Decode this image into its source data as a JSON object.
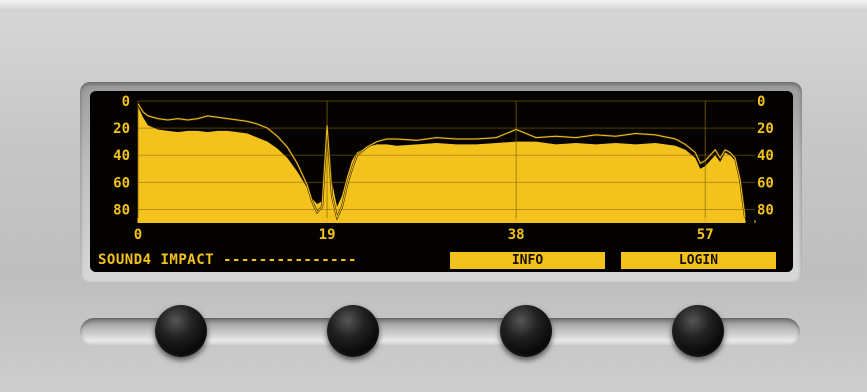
{
  "device": {
    "name": "SOUND4 IMPACT",
    "separator": "---------------"
  },
  "softkeys": {
    "info": "INFO",
    "login": "LOGIN"
  },
  "colors": {
    "lcd_amber": "#f4c21c",
    "lcd_background": "#050300",
    "panel_metal": "#c8c8c8"
  },
  "chart_data": {
    "type": "area",
    "x_ticks": [
      "0",
      "19",
      "38",
      "57"
    ],
    "y_ticks_left": [
      "0",
      "20",
      "40",
      "60",
      "80"
    ],
    "y_ticks_right": [
      "0",
      "20",
      "40",
      "60",
      "80"
    ],
    "xlim": [
      0,
      62
    ],
    "ylim": [
      0,
      90
    ],
    "y_inverted": true,
    "grid": true,
    "series": [
      {
        "kind": "fill",
        "x": [
          0,
          0.5,
          1,
          2,
          3,
          4,
          5,
          6,
          7,
          8,
          9,
          10,
          11,
          12,
          13,
          14,
          15,
          16,
          17,
          17.5,
          18,
          18.5,
          19,
          19.5,
          20,
          20.5,
          21,
          21.5,
          22,
          23,
          24,
          25,
          26,
          28,
          30,
          32,
          34,
          36,
          38,
          40,
          42,
          44,
          46,
          48,
          50,
          52,
          54,
          55,
          56,
          56.5,
          57,
          57.5,
          58,
          58.5,
          59,
          59.5,
          60,
          60.5,
          61
        ],
        "y": [
          4,
          12,
          18,
          21,
          22,
          23,
          22,
          22,
          23,
          22,
          22,
          23,
          24,
          27,
          30,
          35,
          42,
          52,
          64,
          72,
          76,
          74,
          24,
          60,
          78,
          70,
          56,
          44,
          38,
          34,
          32,
          32,
          33,
          32,
          31,
          32,
          32,
          31,
          30,
          30,
          32,
          31,
          32,
          31,
          32,
          31,
          33,
          36,
          42,
          50,
          48,
          44,
          40,
          45,
          38,
          40,
          44,
          60,
          82
        ]
      },
      {
        "kind": "line",
        "x": [
          0,
          0.5,
          1,
          2,
          3,
          4,
          5,
          6,
          7,
          8,
          9,
          10,
          11,
          12,
          13,
          14,
          15,
          16,
          17,
          17.5,
          18,
          18.5,
          19,
          19.5,
          20,
          20.5,
          21,
          21.5,
          22,
          23,
          24,
          25,
          26,
          28,
          30,
          32,
          34,
          36,
          38,
          40,
          42,
          44,
          46,
          48,
          50,
          52,
          54,
          55,
          56,
          56.5,
          57,
          57.5,
          58,
          58.5,
          59,
          59.5,
          60,
          60.5,
          61
        ],
        "y": [
          2,
          8,
          11,
          13,
          14,
          13,
          14,
          13,
          11,
          12,
          13,
          14,
          15,
          17,
          20,
          26,
          34,
          46,
          62,
          74,
          82,
          78,
          18,
          70,
          86,
          78,
          62,
          50,
          40,
          34,
          30,
          28,
          28,
          29,
          27,
          28,
          28,
          27,
          21,
          27,
          26,
          27,
          25,
          26,
          24,
          25,
          28,
          32,
          38,
          46,
          44,
          40,
          36,
          42,
          36,
          38,
          42,
          58,
          86
        ]
      }
    ]
  }
}
